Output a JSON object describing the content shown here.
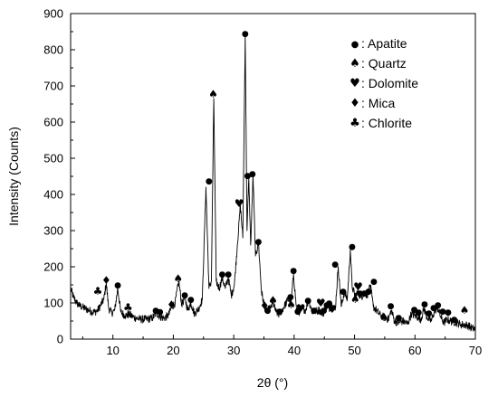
{
  "chart_data": {
    "type": "line",
    "title": "",
    "xlabel": "2θ (°)",
    "ylabel": "Intensity (Counts)",
    "xlim": [
      3,
      70
    ],
    "ylim": [
      0,
      900
    ],
    "x_ticks": [
      "10",
      "20",
      "30",
      "40",
      "50",
      "60",
      "70"
    ],
    "y_ticks": [
      "0",
      "100",
      "200",
      "300",
      "400",
      "500",
      "600",
      "700",
      "800",
      "900"
    ],
    "grid": false,
    "legend_position": "top-right",
    "legend": [
      {
        "marker": "●",
        "label": ": Apatite"
      },
      {
        "marker": "♠",
        "label": ": Quartz"
      },
      {
        "marker": "♥",
        "label": ": Dolomite"
      },
      {
        "marker": "♦",
        "label": ": Mica"
      },
      {
        "marker": "♣",
        "label": ": Chlorite"
      }
    ],
    "series": [
      {
        "x": [
          3,
          3.5,
          4,
          4.5,
          5,
          5.5,
          6,
          6.5,
          7,
          7.5,
          8,
          8.5,
          8.9,
          9.3,
          9.8,
          10.3,
          10.8,
          11.3,
          12,
          12.7,
          13.5,
          14.5,
          15.5,
          16.5,
          17.2,
          17.8,
          18.5,
          19.2,
          19.7,
          20.3,
          20.9,
          21.4,
          21.9,
          22.4,
          22.9,
          23.5,
          24.2,
          24.8,
          25.4,
          25.9,
          26.3,
          26.7,
          27.1,
          27.6,
          28.1,
          28.6,
          29.1,
          29.6,
          30.1,
          30.6,
          31.1,
          31.5,
          31.9,
          32.2,
          32.5,
          32.8,
          33.2,
          33.6,
          34.1,
          34.6,
          35.1,
          35.6,
          36.1,
          36.5,
          37,
          37.5,
          38,
          38.5,
          39,
          39.5,
          39.9,
          40.4,
          40.9,
          41.4,
          41.9,
          42.4,
          43,
          43.6,
          44.2,
          44.8,
          45.3,
          45.8,
          46.3,
          46.8,
          47.3,
          47.8,
          48.3,
          48.8,
          49.3,
          49.6,
          50.1,
          50.6,
          51.1,
          51.6,
          52.1,
          52.6,
          53.1,
          53.6,
          54.3,
          55,
          55.6,
          56.1,
          56.6,
          57.3,
          58,
          58.8,
          59.4,
          60,
          60.5,
          61,
          61.5,
          62,
          62.7,
          63.3,
          63.8,
          64.3,
          64.8,
          65.3,
          65.8,
          66.4,
          67,
          67.6,
          68.2,
          68.8,
          69.4,
          70
        ],
        "y": [
          140,
          115,
          100,
          92,
          88,
          84,
          80,
          76,
          75,
          80,
          95,
          110,
          155,
          85,
          72,
          80,
          140,
          75,
          65,
          68,
          60,
          55,
          55,
          58,
          72,
          62,
          58,
          66,
          88,
          100,
          160,
          95,
          115,
          80,
          100,
          70,
          85,
          110,
          420,
          140,
          160,
          665,
          160,
          140,
          170,
          140,
          170,
          120,
          150,
          260,
          370,
          280,
          840,
          300,
          445,
          260,
          450,
          230,
          265,
          130,
          90,
          80,
          85,
          100,
          75,
          68,
          80,
          95,
          110,
          100,
          180,
          80,
          75,
          85,
          80,
          110,
          75,
          78,
          80,
          70,
          90,
          85,
          95,
          80,
          200,
          90,
          130,
          110,
          248,
          145,
          120,
          130,
          115,
          130,
          120,
          150,
          90,
          80,
          65,
          60,
          55,
          80,
          50,
          45,
          50,
          42,
          70,
          65,
          60,
          55,
          85,
          60,
          50,
          80,
          85,
          60,
          45,
          55,
          50,
          48,
          45,
          40,
          40,
          38,
          30,
          28
        ]
      }
    ],
    "annotations": [
      {
        "x": 7.5,
        "y": 133,
        "marker": "♣"
      },
      {
        "x": 8.9,
        "y": 162,
        "marker": "♦"
      },
      {
        "x": 10.8,
        "y": 150,
        "marker": "●"
      },
      {
        "x": 12.5,
        "y": 88,
        "marker": "♣"
      },
      {
        "x": 17.1,
        "y": 80,
        "marker": "●"
      },
      {
        "x": 17.8,
        "y": 76,
        "marker": "●"
      },
      {
        "x": 19.7,
        "y": 95,
        "marker": "♦"
      },
      {
        "x": 20.8,
        "y": 167,
        "marker": "♠"
      },
      {
        "x": 21.9,
        "y": 123,
        "marker": "●"
      },
      {
        "x": 22.9,
        "y": 110,
        "marker": "●"
      },
      {
        "x": 25.9,
        "y": 437,
        "marker": "●"
      },
      {
        "x": 26.6,
        "y": 678,
        "marker": "♠"
      },
      {
        "x": 28.1,
        "y": 180,
        "marker": "●"
      },
      {
        "x": 29.1,
        "y": 180,
        "marker": "●"
      },
      {
        "x": 30.9,
        "y": 375,
        "marker": "♥"
      },
      {
        "x": 31.9,
        "y": 845,
        "marker": "●"
      },
      {
        "x": 32.3,
        "y": 453,
        "marker": "●"
      },
      {
        "x": 33.1,
        "y": 458,
        "marker": "●"
      },
      {
        "x": 34.1,
        "y": 270,
        "marker": "●"
      },
      {
        "x": 35.1,
        "y": 92,
        "marker": "♦"
      },
      {
        "x": 35.6,
        "y": 80,
        "marker": "●"
      },
      {
        "x": 36.5,
        "y": 108,
        "marker": "♠"
      },
      {
        "x": 37.6,
        "y": 78,
        "marker": "●"
      },
      {
        "x": 39.4,
        "y": 118,
        "marker": "●"
      },
      {
        "x": 39.5,
        "y": 95,
        "marker": "♠"
      },
      {
        "x": 39.9,
        "y": 190,
        "marker": "●"
      },
      {
        "x": 40.6,
        "y": 78,
        "marker": "●"
      },
      {
        "x": 41.1,
        "y": 85,
        "marker": "♥"
      },
      {
        "x": 42.3,
        "y": 108,
        "marker": "●"
      },
      {
        "x": 43.3,
        "y": 80,
        "marker": "●"
      },
      {
        "x": 44.4,
        "y": 100,
        "marker": "♥"
      },
      {
        "x": 44.9,
        "y": 80,
        "marker": "●"
      },
      {
        "x": 45.4,
        "y": 95,
        "marker": "●"
      },
      {
        "x": 45.8,
        "y": 100,
        "marker": "●"
      },
      {
        "x": 46.3,
        "y": 82,
        "marker": "♥"
      },
      {
        "x": 46.8,
        "y": 208,
        "marker": "●"
      },
      {
        "x": 48.1,
        "y": 133,
        "marker": "●"
      },
      {
        "x": 49.6,
        "y": 256,
        "marker": "●"
      },
      {
        "x": 50.1,
        "y": 110,
        "marker": "♠"
      },
      {
        "x": 50.6,
        "y": 145,
        "marker": "♥"
      },
      {
        "x": 50.9,
        "y": 128,
        "marker": "●"
      },
      {
        "x": 51.6,
        "y": 128,
        "marker": "●"
      },
      {
        "x": 52.3,
        "y": 132,
        "marker": "●"
      },
      {
        "x": 53.2,
        "y": 160,
        "marker": "●"
      },
      {
        "x": 54.9,
        "y": 60,
        "marker": "♠"
      },
      {
        "x": 56,
        "y": 92,
        "marker": "●"
      },
      {
        "x": 57.3,
        "y": 60,
        "marker": "●"
      },
      {
        "x": 59.9,
        "y": 82,
        "marker": "●"
      },
      {
        "x": 60.6,
        "y": 75,
        "marker": "●"
      },
      {
        "x": 61.6,
        "y": 98,
        "marker": "●"
      },
      {
        "x": 62.3,
        "y": 72,
        "marker": "●"
      },
      {
        "x": 63.1,
        "y": 88,
        "marker": "●"
      },
      {
        "x": 63.8,
        "y": 95,
        "marker": "●"
      },
      {
        "x": 64.6,
        "y": 78,
        "marker": "●"
      },
      {
        "x": 65.5,
        "y": 75,
        "marker": "●"
      },
      {
        "x": 66.5,
        "y": 55,
        "marker": "●"
      },
      {
        "x": 68.2,
        "y": 80,
        "marker": "♠"
      }
    ]
  }
}
